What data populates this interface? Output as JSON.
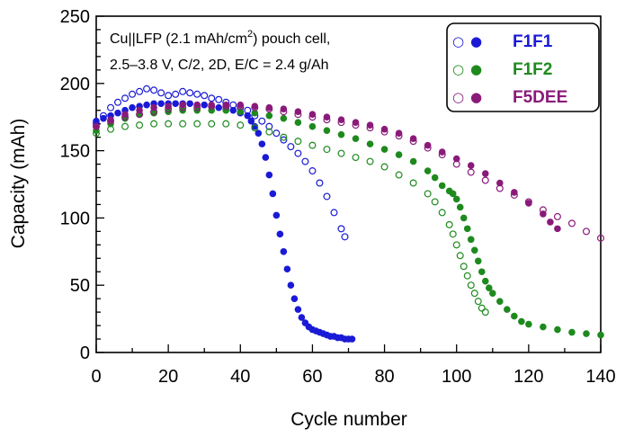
{
  "chart_data": {
    "type": "scatter",
    "title": "",
    "xlabel": "Cycle number",
    "ylabel": "Capacity (mAh)",
    "xlim": [
      0,
      140
    ],
    "ylim": [
      0,
      250
    ],
    "xticks": [
      0,
      20,
      40,
      60,
      80,
      100,
      120,
      140
    ],
    "yticks": [
      0,
      50,
      100,
      150,
      200,
      250
    ],
    "grid": false,
    "legend_position": "top-right",
    "annotation": {
      "line1_pre": "Cu||LFP (2.1 mAh/cm",
      "line1_sup": "2",
      "line1_post": ") pouch cell,",
      "line2": "2.5–3.8 V,  C/2, 2D, E/C = 2.4 g/Ah"
    },
    "legend_markers": {
      "open": "○",
      "filled": "●"
    },
    "series": [
      {
        "name": "F1F1",
        "color": "#1a1ad6",
        "open": [
          [
            0,
            170
          ],
          [
            2,
            176
          ],
          [
            4,
            182
          ],
          [
            6,
            186
          ],
          [
            8,
            189
          ],
          [
            10,
            192
          ],
          [
            12,
            194
          ],
          [
            14,
            196
          ],
          [
            16,
            195
          ],
          [
            18,
            193
          ],
          [
            20,
            191
          ],
          [
            22,
            192
          ],
          [
            24,
            194
          ],
          [
            26,
            193
          ],
          [
            28,
            192
          ],
          [
            30,
            191
          ],
          [
            32,
            189
          ],
          [
            34,
            188
          ],
          [
            36,
            186
          ],
          [
            38,
            184
          ],
          [
            40,
            182
          ],
          [
            42,
            180
          ],
          [
            44,
            176
          ],
          [
            46,
            172
          ],
          [
            48,
            168
          ],
          [
            50,
            163
          ],
          [
            52,
            158
          ],
          [
            54,
            153
          ],
          [
            56,
            148
          ],
          [
            58,
            142
          ],
          [
            60,
            135
          ],
          [
            62,
            126
          ],
          [
            64,
            116
          ],
          [
            66,
            104
          ],
          [
            68,
            92
          ],
          [
            69,
            86
          ]
        ],
        "filled": [
          [
            0,
            172
          ],
          [
            2,
            174
          ],
          [
            4,
            176
          ],
          [
            6,
            178
          ],
          [
            8,
            180
          ],
          [
            10,
            182
          ],
          [
            12,
            183
          ],
          [
            14,
            184
          ],
          [
            16,
            185
          ],
          [
            18,
            185
          ],
          [
            20,
            185
          ],
          [
            22,
            185
          ],
          [
            24,
            185
          ],
          [
            26,
            185
          ],
          [
            28,
            184
          ],
          [
            30,
            184
          ],
          [
            32,
            183
          ],
          [
            34,
            182
          ],
          [
            36,
            181
          ],
          [
            38,
            180
          ],
          [
            40,
            178
          ],
          [
            42,
            176
          ],
          [
            43,
            172
          ],
          [
            44,
            168
          ],
          [
            45,
            163
          ],
          [
            46,
            155
          ],
          [
            47,
            145
          ],
          [
            48,
            132
          ],
          [
            49,
            118
          ],
          [
            50,
            102
          ],
          [
            51,
            88
          ],
          [
            52,
            75
          ],
          [
            53,
            62
          ],
          [
            54,
            50
          ],
          [
            55,
            40
          ],
          [
            56,
            32
          ],
          [
            57,
            26
          ],
          [
            58,
            22
          ],
          [
            59,
            19
          ],
          [
            60,
            17
          ],
          [
            61,
            16
          ],
          [
            62,
            15
          ],
          [
            63,
            14
          ],
          [
            64,
            13
          ],
          [
            65,
            12
          ],
          [
            66,
            12
          ],
          [
            67,
            11
          ],
          [
            68,
            11
          ],
          [
            69,
            10
          ],
          [
            70,
            10
          ],
          [
            71,
            10
          ]
        ]
      },
      {
        "name": "F1F2",
        "color": "#1e8a1e",
        "open": [
          [
            0,
            163
          ],
          [
            4,
            166
          ],
          [
            8,
            168
          ],
          [
            12,
            169
          ],
          [
            16,
            170
          ],
          [
            20,
            170
          ],
          [
            24,
            170
          ],
          [
            28,
            170
          ],
          [
            32,
            170
          ],
          [
            36,
            170
          ],
          [
            40,
            169
          ],
          [
            44,
            167
          ],
          [
            48,
            164
          ],
          [
            52,
            160
          ],
          [
            56,
            157
          ],
          [
            60,
            154
          ],
          [
            64,
            151
          ],
          [
            68,
            148
          ],
          [
            72,
            145
          ],
          [
            76,
            142
          ],
          [
            80,
            138
          ],
          [
            84,
            132
          ],
          [
            88,
            126
          ],
          [
            92,
            118
          ],
          [
            94,
            112
          ],
          [
            96,
            104
          ],
          [
            98,
            95
          ],
          [
            99,
            88
          ],
          [
            100,
            80
          ],
          [
            101,
            72
          ],
          [
            102,
            64
          ],
          [
            103,
            57
          ],
          [
            104,
            50
          ],
          [
            105,
            44
          ],
          [
            106,
            38
          ],
          [
            107,
            33
          ],
          [
            108,
            30
          ]
        ],
        "filled": [
          [
            0,
            165
          ],
          [
            4,
            170
          ],
          [
            8,
            174
          ],
          [
            12,
            177
          ],
          [
            16,
            178
          ],
          [
            20,
            179
          ],
          [
            24,
            180
          ],
          [
            28,
            180
          ],
          [
            32,
            180
          ],
          [
            36,
            180
          ],
          [
            40,
            179
          ],
          [
            44,
            178
          ],
          [
            48,
            176
          ],
          [
            52,
            174
          ],
          [
            56,
            171
          ],
          [
            60,
            168
          ],
          [
            64,
            165
          ],
          [
            68,
            162
          ],
          [
            72,
            159
          ],
          [
            76,
            155
          ],
          [
            80,
            151
          ],
          [
            84,
            147
          ],
          [
            88,
            142
          ],
          [
            92,
            135
          ],
          [
            94,
            130
          ],
          [
            96,
            124
          ],
          [
            98,
            120
          ],
          [
            99,
            118
          ],
          [
            100,
            114
          ],
          [
            101,
            108
          ],
          [
            102,
            100
          ],
          [
            103,
            92
          ],
          [
            104,
            84
          ],
          [
            105,
            76
          ],
          [
            106,
            68
          ],
          [
            107,
            60
          ],
          [
            108,
            53
          ],
          [
            109,
            48
          ],
          [
            110,
            44
          ],
          [
            112,
            38
          ],
          [
            114,
            32
          ],
          [
            116,
            27
          ],
          [
            118,
            23
          ],
          [
            120,
            21
          ],
          [
            124,
            19
          ],
          [
            128,
            17
          ],
          [
            132,
            15
          ],
          [
            136,
            14
          ],
          [
            140,
            13
          ]
        ]
      },
      {
        "name": "F5DEE",
        "color": "#8a1a7a",
        "open": [
          [
            0,
            168
          ],
          [
            4,
            172
          ],
          [
            8,
            175
          ],
          [
            12,
            177
          ],
          [
            16,
            179
          ],
          [
            20,
            181
          ],
          [
            24,
            182
          ],
          [
            28,
            182
          ],
          [
            32,
            183
          ],
          [
            36,
            183
          ],
          [
            40,
            183
          ],
          [
            44,
            182
          ],
          [
            48,
            181
          ],
          [
            52,
            179
          ],
          [
            56,
            177
          ],
          [
            60,
            175
          ],
          [
            64,
            173
          ],
          [
            68,
            171
          ],
          [
            72,
            169
          ],
          [
            76,
            167
          ],
          [
            80,
            164
          ],
          [
            84,
            161
          ],
          [
            88,
            157
          ],
          [
            92,
            152
          ],
          [
            96,
            147
          ],
          [
            100,
            140
          ],
          [
            104,
            134
          ],
          [
            108,
            128
          ],
          [
            112,
            122
          ],
          [
            116,
            117
          ],
          [
            120,
            112
          ],
          [
            124,
            106
          ],
          [
            128,
            101
          ],
          [
            132,
            96
          ],
          [
            136,
            90
          ],
          [
            140,
            85
          ]
        ],
        "filled": [
          [
            0,
            168
          ],
          [
            4,
            173
          ],
          [
            8,
            177
          ],
          [
            12,
            180
          ],
          [
            16,
            182
          ],
          [
            20,
            183
          ],
          [
            24,
            184
          ],
          [
            28,
            184
          ],
          [
            32,
            184
          ],
          [
            36,
            184
          ],
          [
            40,
            184
          ],
          [
            44,
            183
          ],
          [
            48,
            182
          ],
          [
            52,
            181
          ],
          [
            56,
            179
          ],
          [
            60,
            177
          ],
          [
            64,
            175
          ],
          [
            68,
            173
          ],
          [
            72,
            171
          ],
          [
            76,
            169
          ],
          [
            80,
            166
          ],
          [
            84,
            163
          ],
          [
            88,
            159
          ],
          [
            92,
            154
          ],
          [
            96,
            149
          ],
          [
            100,
            144
          ],
          [
            104,
            139
          ],
          [
            108,
            133
          ],
          [
            112,
            126
          ],
          [
            116,
            119
          ],
          [
            120,
            111
          ],
          [
            124,
            103
          ],
          [
            126,
            97
          ],
          [
            128,
            92
          ]
        ]
      }
    ]
  }
}
